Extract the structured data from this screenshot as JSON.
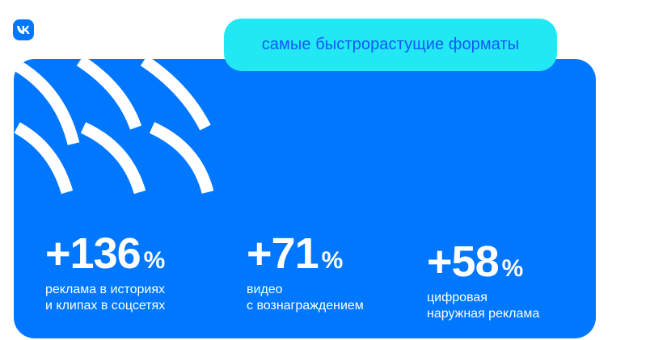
{
  "brand": {
    "logo": "vk-logo-icon",
    "color": "#0077ff"
  },
  "headline": "самые быстрорастущие форматы",
  "colors": {
    "panel": "#0077ff",
    "pill": "#21e8f2",
    "pill_text": "#1557ff",
    "text": "#ffffff"
  },
  "stats": [
    {
      "value": "+136",
      "unit": "%",
      "caption_lines": [
        "реклама в историях",
        "и клипах в соцсетях"
      ]
    },
    {
      "value": "+71",
      "unit": "%",
      "caption_lines": [
        "видео",
        "с вознаграждением"
      ]
    },
    {
      "value": "+58",
      "unit": "%",
      "caption_lines": [
        "цифровая",
        "наружная реклама"
      ]
    }
  ]
}
